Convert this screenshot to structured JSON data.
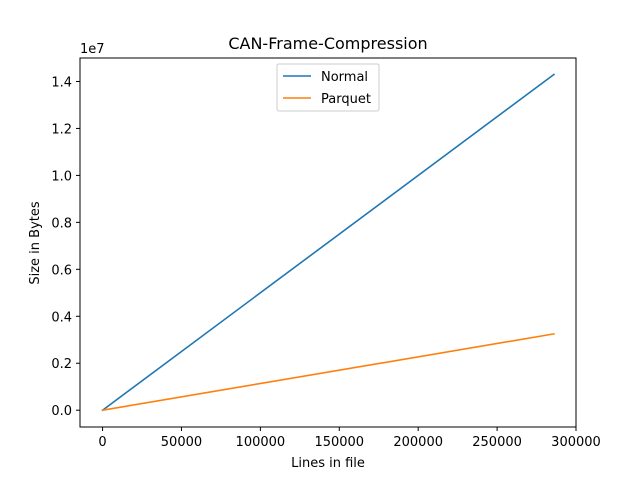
{
  "chart_data": {
    "type": "line",
    "title": "CAN-Frame-Compression",
    "xlabel": "Lines in file",
    "ylabel": "Size in Bytes",
    "y_offset_text": "1e7",
    "xlim": [
      -14300,
      300000
    ],
    "ylim": [
      -715000,
      15000000
    ],
    "x_ticks": [
      0,
      50000,
      100000,
      150000,
      200000,
      250000,
      300000
    ],
    "x_tick_labels": [
      "0",
      "50000",
      "100000",
      "150000",
      "200000",
      "250000",
      "300000"
    ],
    "y_ticks": [
      0,
      2000000,
      4000000,
      6000000,
      8000000,
      10000000,
      12000000,
      14000000
    ],
    "y_tick_labels": [
      "0.0",
      "0.2",
      "0.4",
      "0.6",
      "0.8",
      "1.0",
      "1.2",
      "1.4"
    ],
    "grid": false,
    "legend_position": "top-center",
    "series": [
      {
        "name": "Normal",
        "color": "#1f77b4",
        "x": [
          0,
          286000
        ],
        "y": [
          0,
          14300000
        ]
      },
      {
        "name": "Parquet",
        "color": "#ff7f0e",
        "x": [
          0,
          286000
        ],
        "y": [
          0,
          3250000
        ]
      }
    ]
  }
}
